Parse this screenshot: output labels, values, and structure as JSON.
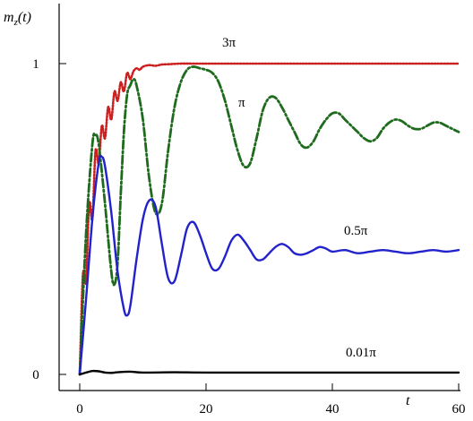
{
  "chart_data": {
    "type": "line",
    "xlabel": "t",
    "ylabel": "m_z(t)",
    "xlim": [
      0,
      60
    ],
    "ylim": [
      0,
      1
    ],
    "x_ticks": [
      0,
      20,
      40,
      60
    ],
    "y_ticks": [
      0,
      1
    ],
    "x_tick_labels": [
      "0",
      "20",
      "40",
      "60"
    ],
    "y_tick_labels": [
      "0",
      "1"
    ],
    "grid": false,
    "series": [
      {
        "name": "3π",
        "color": "#cc1f1f",
        "style": "dotted",
        "x": [
          0,
          0.5,
          1,
          1.5,
          2,
          2.5,
          3,
          3.5,
          4,
          4.5,
          5,
          5.5,
          6,
          6.5,
          7,
          7.5,
          8,
          8.5,
          9,
          9.5,
          10,
          11,
          12,
          13,
          14,
          15,
          16,
          18,
          20,
          25,
          30,
          40,
          50,
          60
        ],
        "y": [
          0,
          0.32,
          0.3,
          0.55,
          0.5,
          0.72,
          0.68,
          0.8,
          0.76,
          0.86,
          0.82,
          0.91,
          0.88,
          0.94,
          0.91,
          0.97,
          0.95,
          0.975,
          0.985,
          0.98,
          0.99,
          0.995,
          0.993,
          0.997,
          0.998,
          0.999,
          1,
          1,
          1,
          1,
          1,
          1,
          1,
          1
        ]
      },
      {
        "name": "π",
        "color": "#1e6b1e",
        "style": "dash-dot",
        "x": [
          0,
          1,
          2,
          2.5,
          3,
          4,
          5,
          5.5,
          6,
          6.5,
          7,
          7.5,
          8,
          8.5,
          9,
          10,
          11,
          12,
          13,
          14,
          15,
          16,
          17,
          18,
          19,
          20,
          21,
          22,
          23,
          24,
          25,
          26,
          27,
          28,
          29,
          30,
          31,
          32,
          33,
          34,
          35,
          36,
          37,
          38,
          39,
          40,
          41,
          42,
          43,
          44,
          45,
          46,
          47,
          48,
          49,
          50,
          51,
          52,
          53,
          54,
          55,
          56,
          57,
          58,
          59,
          60
        ],
        "y": [
          0,
          0.45,
          0.74,
          0.77,
          0.74,
          0.55,
          0.33,
          0.29,
          0.36,
          0.58,
          0.78,
          0.9,
          0.93,
          0.95,
          0.93,
          0.82,
          0.63,
          0.52,
          0.55,
          0.72,
          0.86,
          0.94,
          0.98,
          0.99,
          0.985,
          0.98,
          0.97,
          0.94,
          0.88,
          0.8,
          0.72,
          0.67,
          0.68,
          0.76,
          0.85,
          0.89,
          0.89,
          0.86,
          0.82,
          0.78,
          0.74,
          0.73,
          0.75,
          0.79,
          0.82,
          0.84,
          0.84,
          0.82,
          0.8,
          0.78,
          0.76,
          0.75,
          0.76,
          0.79,
          0.81,
          0.82,
          0.815,
          0.8,
          0.79,
          0.79,
          0.8,
          0.81,
          0.81,
          0.8,
          0.79,
          0.78
        ]
      },
      {
        "name": "0.5π",
        "color": "#2222cc",
        "style": "solid",
        "x": [
          0,
          1,
          2,
          3,
          3.5,
          4,
          5,
          6,
          7,
          7.5,
          8,
          9,
          10,
          11,
          12,
          13,
          14,
          15,
          16,
          17,
          18,
          19,
          20,
          21,
          22,
          23,
          24,
          25,
          26,
          27,
          28,
          29,
          30,
          31,
          32,
          33,
          34,
          35,
          36,
          37,
          38,
          39,
          40,
          42,
          44,
          46,
          48,
          50,
          52,
          54,
          56,
          58,
          60
        ],
        "y": [
          0,
          0.24,
          0.5,
          0.68,
          0.7,
          0.67,
          0.52,
          0.33,
          0.21,
          0.19,
          0.22,
          0.37,
          0.5,
          0.56,
          0.54,
          0.42,
          0.31,
          0.3,
          0.38,
          0.47,
          0.49,
          0.45,
          0.39,
          0.34,
          0.34,
          0.38,
          0.43,
          0.45,
          0.43,
          0.4,
          0.37,
          0.37,
          0.39,
          0.41,
          0.42,
          0.41,
          0.39,
          0.385,
          0.39,
          0.4,
          0.41,
          0.405,
          0.395,
          0.4,
          0.39,
          0.395,
          0.4,
          0.395,
          0.39,
          0.395,
          0.4,
          0.395,
          0.4
        ]
      },
      {
        "name": "0.01π",
        "color": "#000000",
        "style": "solid",
        "x": [
          0,
          1,
          2,
          3,
          4,
          5,
          6,
          8,
          10,
          15,
          20,
          30,
          40,
          50,
          60
        ],
        "y": [
          0,
          0.006,
          0.011,
          0.01,
          0.006,
          0.005,
          0.007,
          0.009,
          0.006,
          0.007,
          0.006,
          0.006,
          0.006,
          0.006,
          0.006
        ]
      }
    ]
  }
}
